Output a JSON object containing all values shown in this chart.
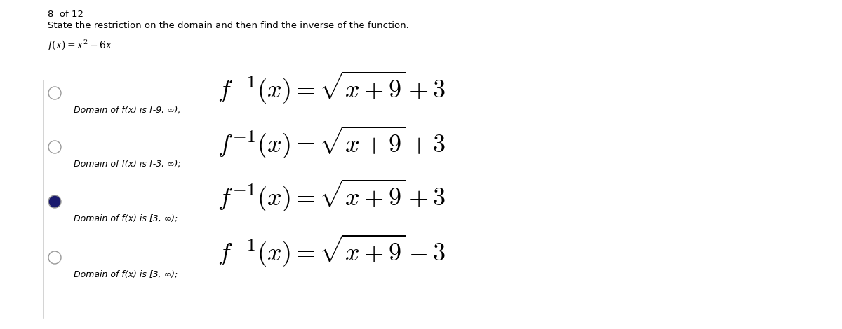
{
  "title_line1": "8  of 12",
  "title_line2": "State the restriction on the domain and then find the inverse of the function.",
  "options": [
    {
      "domain_text": "Domain of f(x) is [-9, ∞);",
      "formula": "$f^{-1}(x) = \\sqrt{x+9}+3$",
      "radio_filled": false
    },
    {
      "domain_text": "Domain of f(x) is [-3, ∞);",
      "formula": "$f^{-1}(x) = \\sqrt{x+9}+3$",
      "radio_filled": false
    },
    {
      "domain_text": "Domain of f(x) is [3, ∞);",
      "formula": "$f^{-1}(x) = \\sqrt{x+9}+3$",
      "radio_filled": true
    },
    {
      "domain_text": "Domain of f(x) is [3, ∞);",
      "formula": "$f^{-1}(x) = \\sqrt{x+9}-3$",
      "radio_filled": false
    }
  ],
  "bg_color": "#ffffff",
  "text_color": "#000000",
  "radio_filled_color": "#1a1a6e",
  "radio_empty_color": "#ffffff",
  "radio_edge_color": "#999999",
  "sep_color": "#cccccc"
}
